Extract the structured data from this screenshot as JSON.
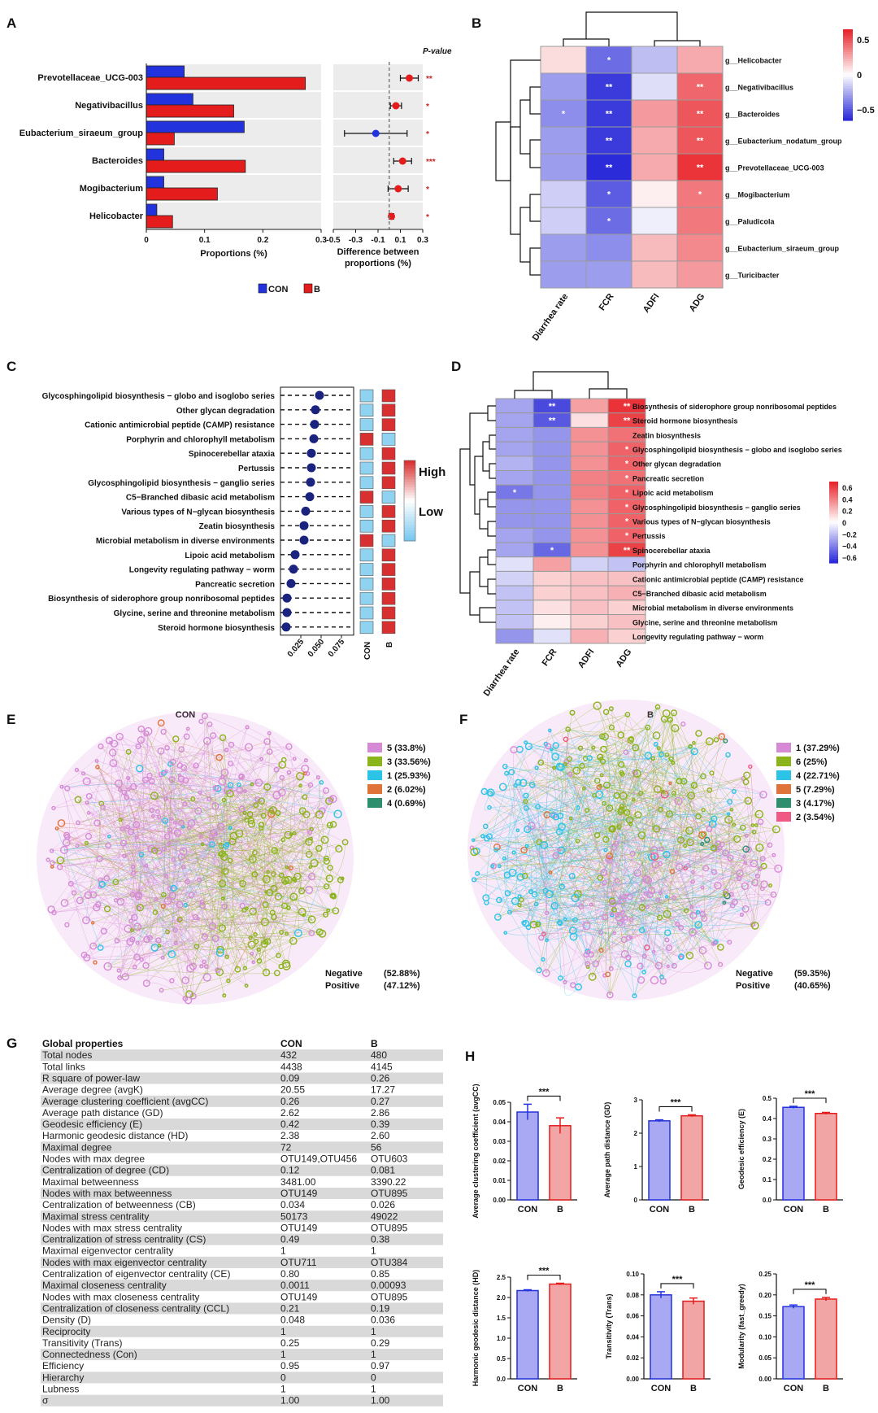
{
  "panels": {
    "A": "A",
    "B": "B",
    "C": "C",
    "D": "D",
    "E": "E",
    "F": "F",
    "G": "G",
    "H": "H"
  },
  "colors": {
    "con": "#2233dd",
    "b": "#e51c1c",
    "sig": "#cc2222",
    "dot_navy": "#1a237e",
    "heat_pos": "#e8232a",
    "heat_neg": "#2b2bd9",
    "net_pink": "#d68ad6",
    "net_green": "#8bb31a",
    "net_cyan": "#2cc4e6",
    "net_orange": "#e0733a",
    "net_teal": "#2d8f6e",
    "net_rose": "#ee5a84",
    "bar_con_fill": "#a8a9f2",
    "bar_b_fill": "#f2a5a5"
  },
  "chart_data": [
    {
      "id": "A",
      "type": "bar",
      "categories": [
        "Prevotellaceae_UCG-003",
        "Negativibacillus",
        "Eubacterium_siraeum_group",
        "Bacteroides",
        "Mogibacterium",
        "Helicobacter"
      ],
      "series": [
        {
          "name": "CON",
          "values": [
            0.065,
            0.08,
            0.168,
            0.03,
            0.03,
            0.018
          ]
        },
        {
          "name": "B",
          "values": [
            0.273,
            0.15,
            0.048,
            0.17,
            0.122,
            0.045
          ]
        }
      ],
      "xlabel": "Proportions (%)",
      "xlim": [
        0,
        0.3
      ],
      "xticks": [
        "0",
        "0.1",
        "0.2",
        "0.3"
      ],
      "legend": [
        {
          "name": "CON",
          "color": "#2233dd"
        },
        {
          "name": "B",
          "color": "#e51c1c"
        }
      ]
    },
    {
      "id": "A2",
      "type": "scatter",
      "title": "P-value",
      "categories": [
        "Prevotellaceae_UCG-003",
        "Negativibacillus",
        "Eubacterium_siraeum_group",
        "Bacteroides",
        "Mogibacterium",
        "Helicobacter"
      ],
      "diff": [
        0.18,
        0.06,
        -0.12,
        0.12,
        0.08,
        0.02
      ],
      "err": [
        0.08,
        0.05,
        0.28,
        0.08,
        0.09,
        0.02
      ],
      "dot_color": [
        "red",
        "red",
        "blue",
        "red",
        "red",
        "red"
      ],
      "pvalue": [
        "**",
        "*",
        "*",
        "***",
        "*",
        "*"
      ],
      "xlabel": "Difference between proportions (%)",
      "xlim": [
        -0.5,
        0.3
      ],
      "xticks": [
        "-0.5",
        "-0.3",
        "-0.1",
        "0.1",
        "0.3"
      ]
    },
    {
      "id": "B",
      "type": "heatmap",
      "rows": [
        "g__Helicobacter",
        "g__Negativibacillus",
        "g__Bacteroides",
        "g__Eubacterium_nodatum_group",
        "g__Prevotellaceae_UCG-003",
        "g__Mogibacterium",
        "g__Paludicola",
        "g__Eubacterium_siraeum_group",
        "g__Turicibacter"
      ],
      "cols": [
        "Diarrhea rate",
        "FCR",
        "ADFI",
        "ADG"
      ],
      "values": [
        [
          0.1,
          -0.45,
          -0.2,
          0.25
        ],
        [
          -0.3,
          -0.6,
          -0.1,
          0.45
        ],
        [
          -0.35,
          -0.6,
          0.3,
          0.5
        ],
        [
          -0.3,
          -0.6,
          0.25,
          0.5
        ],
        [
          -0.3,
          -0.65,
          0.25,
          0.6
        ],
        [
          -0.15,
          -0.5,
          0.05,
          0.4
        ],
        [
          -0.15,
          -0.45,
          -0.05,
          0.4
        ],
        [
          -0.3,
          -0.35,
          0.2,
          0.35
        ],
        [
          -0.3,
          -0.3,
          0.2,
          0.3
        ]
      ],
      "stars": [
        [
          "",
          "*",
          "",
          ""
        ],
        [
          "",
          "**",
          "",
          "**"
        ],
        [
          "*",
          "**",
          "",
          "**"
        ],
        [
          "",
          "**",
          "",
          "**"
        ],
        [
          "",
          "**",
          "",
          "**"
        ],
        [
          "",
          "*",
          "",
          "*"
        ],
        [
          "",
          "*",
          "",
          ""
        ],
        [
          "",
          "",
          "",
          ""
        ],
        [
          "",
          "",
          "",
          ""
        ]
      ],
      "scale_ticks": [
        "0.5",
        "0",
        "−0.5"
      ]
    },
    {
      "id": "C",
      "type": "scatter",
      "categories": [
        "Glycosphingolipid biosynthesis − globo and isoglobo series",
        "Other glycan degradation",
        "Cationic antimicrobial peptide (CAMP) resistance",
        "Porphyrin and chlorophyll metabolism",
        "Spinocerebellar ataxia",
        "Pertussis",
        "Glycosphingolipid biosynthesis − ganglio series",
        "C5−Branched dibasic acid metabolism",
        "Various types of N−glycan biosynthesis",
        "Zeatin biosynthesis",
        "Microbial metabolism in diverse environments",
        "Lipoic acid metabolism",
        "Longevity regulating pathway − worm",
        "Pancreatic secretion",
        "Biosynthesis of siderophore group nonribosomal peptides",
        "Glycine, serine and threonine metabolism",
        "Steroid hormone biosynthesis"
      ],
      "values": [
        0.048,
        0.043,
        0.042,
        0.041,
        0.038,
        0.038,
        0.037,
        0.036,
        0.031,
        0.029,
        0.029,
        0.018,
        0.016,
        0.013,
        0.008,
        0.008,
        0.007
      ],
      "con_level": [
        "low",
        "low",
        "low",
        "high",
        "low",
        "low",
        "low",
        "high",
        "low",
        "low",
        "high",
        "low",
        "low",
        "low",
        "low",
        "low",
        "low"
      ],
      "b_level": [
        "high",
        "high",
        "high",
        "low",
        "high",
        "high",
        "high",
        "low",
        "high",
        "high",
        "low",
        "high",
        "high",
        "high",
        "high",
        "high",
        "high"
      ],
      "xticks": [
        "0.025",
        "0.050",
        "0.075"
      ],
      "group_labels": [
        "CON",
        "B"
      ],
      "legend": [
        "High",
        "Low"
      ]
    },
    {
      "id": "D",
      "type": "heatmap",
      "rows": [
        "Biosynthesis of siderophore group nonribosomal peptides",
        "Steroid hormone biosynthesis",
        "Zeatin biosynthesis",
        "Glycosphingolipid biosynthesis − globo and isoglobo series",
        "Other glycan degradation",
        "Pancreatic secretion",
        "Lipoic acid metabolism",
        "Glycosphingolipid biosynthesis − ganglio series",
        "Various types of N−glycan biosynthesis",
        "Pertussis",
        "Spinocerebellar ataxia",
        "Porphyrin and chlorophyll metabolism",
        "Cationic antimicrobial peptide (CAMP) resistance",
        "C5−Branched dibasic acid metabolism",
        "Microbial metabolism in diverse environments",
        "Glycine, serine and threonine metabolism",
        "Longevity regulating pathway − worm"
      ],
      "cols": [
        "Diarrhea rate",
        "FCR",
        "ADFI",
        "ADG"
      ],
      "values": [
        [
          -0.3,
          -0.6,
          0.3,
          0.65
        ],
        [
          -0.3,
          -0.55,
          0.1,
          0.6
        ],
        [
          -0.3,
          -0.35,
          0.35,
          0.45
        ],
        [
          -0.3,
          -0.35,
          0.35,
          0.5
        ],
        [
          -0.25,
          -0.35,
          0.35,
          0.5
        ],
        [
          -0.3,
          -0.35,
          0.4,
          0.45
        ],
        [
          -0.45,
          -0.35,
          0.4,
          0.5
        ],
        [
          -0.35,
          -0.35,
          0.35,
          0.5
        ],
        [
          -0.35,
          -0.35,
          0.35,
          0.5
        ],
        [
          -0.3,
          -0.35,
          0.35,
          0.5
        ],
        [
          -0.3,
          -0.5,
          0.35,
          0.6
        ],
        [
          -0.1,
          0.3,
          -0.15,
          -0.2
        ],
        [
          -0.15,
          0.15,
          0.2,
          0.2
        ],
        [
          -0.2,
          0.15,
          0.2,
          0.25
        ],
        [
          -0.2,
          0.1,
          0.2,
          0.15
        ],
        [
          -0.2,
          0.05,
          0.15,
          0.2
        ],
        [
          -0.35,
          -0.1,
          0.25,
          0.15
        ]
      ],
      "stars": [
        [
          "",
          "**",
          "",
          "**"
        ],
        [
          "",
          "**",
          "",
          "**"
        ],
        [
          "",
          "",
          "",
          ""
        ],
        [
          "",
          "",
          "",
          "*"
        ],
        [
          "",
          "",
          "",
          "*"
        ],
        [
          "",
          "",
          "",
          "*"
        ],
        [
          "*",
          "",
          "",
          "*"
        ],
        [
          "",
          "",
          "",
          "*"
        ],
        [
          "",
          "",
          "",
          "*"
        ],
        [
          "",
          "",
          "",
          "*"
        ],
        [
          "",
          "*",
          "",
          "**"
        ],
        [
          "",
          "",
          "",
          ""
        ],
        [
          "",
          "",
          "",
          ""
        ],
        [
          "",
          "",
          "",
          ""
        ],
        [
          "",
          "",
          "",
          ""
        ],
        [
          "",
          "",
          "",
          ""
        ],
        [
          "",
          "",
          "",
          ""
        ]
      ],
      "scale_ticks": [
        "0.6",
        "0.4",
        "0.2",
        "0",
        "−0.2",
        "−0.4",
        "−0.6"
      ]
    },
    {
      "id": "H1",
      "type": "bar",
      "categories": [
        "CON",
        "B"
      ],
      "values": [
        0.045,
        0.038
      ],
      "err": [
        0.004,
        0.004
      ],
      "ylabel": "Average clustering coefficient (avgCC)",
      "ylim": [
        0,
        0.05
      ],
      "yticks": [
        "0.00",
        "0.01",
        "0.02",
        "0.03",
        "0.04",
        "0.05"
      ],
      "sig": "***"
    },
    {
      "id": "H2",
      "type": "bar",
      "categories": [
        "CON",
        "B"
      ],
      "values": [
        2.37,
        2.52
      ],
      "err": [
        0.03,
        0.03
      ],
      "ylabel": "Average path distance (GD)",
      "ylim": [
        0,
        3
      ],
      "yticks": [
        "0",
        "1",
        "2",
        "3"
      ],
      "sig": "***"
    },
    {
      "id": "H3",
      "type": "bar",
      "categories": [
        "CON",
        "B"
      ],
      "values": [
        0.455,
        0.425
      ],
      "err": [
        0.005,
        0.005
      ],
      "ylabel": "Geodesic efficiency (E)",
      "ylim": [
        0,
        0.5
      ],
      "yticks": [
        "0.0",
        "0.1",
        "0.2",
        "0.3",
        "0.4",
        "0.5"
      ],
      "sig": "***"
    },
    {
      "id": "H4",
      "type": "bar",
      "categories": [
        "CON",
        "B"
      ],
      "values": [
        2.17,
        2.33
      ],
      "err": [
        0.02,
        0.02
      ],
      "ylabel": "Harmonic geodesic distance (HD)",
      "ylim": [
        0,
        2.5
      ],
      "yticks": [
        "0.0",
        "0.5",
        "1.0",
        "1.5",
        "2.0",
        "2.5"
      ],
      "sig": "***"
    },
    {
      "id": "H5",
      "type": "bar",
      "categories": [
        "CON",
        "B"
      ],
      "values": [
        0.08,
        0.074
      ],
      "err": [
        0.003,
        0.003
      ],
      "ylabel": "Transitivity (Trans)",
      "ylim": [
        0,
        0.1
      ],
      "yticks": [
        "0.00",
        "0.02",
        "0.04",
        "0.06",
        "0.08",
        "0.10"
      ],
      "sig": "***"
    },
    {
      "id": "H6",
      "type": "bar",
      "categories": [
        "CON",
        "B"
      ],
      "values": [
        0.172,
        0.19
      ],
      "err": [
        0.004,
        0.004
      ],
      "ylabel": "Modularity (fast_greedy)",
      "ylim": [
        0,
        0.25
      ],
      "yticks": [
        "0.00",
        "0.05",
        "0.10",
        "0.15",
        "0.20",
        "0.25"
      ],
      "sig": "***"
    }
  ],
  "networks": {
    "E": {
      "title": "CON",
      "modules": [
        {
          "label": "5 (33.8%)",
          "color": "#d68ad6"
        },
        {
          "label": "3 (33.56%)",
          "color": "#8bb31a"
        },
        {
          "label": "1 (25.93%)",
          "color": "#2cc4e6"
        },
        {
          "label": "2 (6.02%)",
          "color": "#e0733a"
        },
        {
          "label": "4 (0.69%)",
          "color": "#2d8f6e"
        }
      ],
      "negative_label": "Negative",
      "positive_label": "Positive",
      "negative_value": "(52.88%)",
      "positive_value": "(47.12%)"
    },
    "F": {
      "title": "B",
      "modules": [
        {
          "label": "1 (37.29%)",
          "color": "#d68ad6"
        },
        {
          "label": "6 (25%)",
          "color": "#8bb31a"
        },
        {
          "label": "4 (22.71%)",
          "color": "#2cc4e6"
        },
        {
          "label": "5 (7.29%)",
          "color": "#e0733a"
        },
        {
          "label": "3 (4.17%)",
          "color": "#2d8f6e"
        },
        {
          "label": "2 (3.54%)",
          "color": "#ee5a84"
        }
      ],
      "negative_label": "Negative",
      "positive_label": "Positive",
      "negative_value": "(59.35%)",
      "positive_value": "(40.65%)"
    }
  },
  "table": {
    "headers": [
      "Global properties",
      "CON",
      "B"
    ],
    "rows": [
      [
        "Total nodes",
        "432",
        "480"
      ],
      [
        "Total links",
        "4438",
        "4145"
      ],
      [
        "R square of power-law",
        "0.09",
        "0.26"
      ],
      [
        "Average degree (avgK)",
        "20.55",
        "17.27"
      ],
      [
        "Average clustering coefficient (avgCC)",
        "0.26",
        "0.27"
      ],
      [
        "Average path distance (GD)",
        "2.62",
        "2.86"
      ],
      [
        "Geodesic efficiency (E)",
        "0.42",
        "0.39"
      ],
      [
        "Harmonic geodesic distance (HD)",
        "2.38",
        "2.60"
      ],
      [
        "Maximal degree",
        "72",
        "56"
      ],
      [
        "Nodes with max degree",
        "OTU149,OTU456",
        "OTU603"
      ],
      [
        "Centralization of degree (CD)",
        "0.12",
        "0.081"
      ],
      [
        "Maximal betweenness",
        "3481.00",
        "3390.22"
      ],
      [
        "Nodes with max betweenness",
        "OTU149",
        "OTU895"
      ],
      [
        "Centralization of betweenness (CB)",
        "0.034",
        "0.026"
      ],
      [
        "Maximal stress centrality",
        "50173",
        "49022"
      ],
      [
        "Nodes with max stress centrality",
        "OTU149",
        "OTU895"
      ],
      [
        "Centralization of stress centrality (CS)",
        "0.49",
        "0.38"
      ],
      [
        "Maximal eigenvector centrality",
        "1",
        "1"
      ],
      [
        "Nodes with max eigenvector centrality",
        "OTU711",
        "OTU384"
      ],
      [
        "Centralization of eigenvector centrality (CE)",
        "0.80",
        "0.85"
      ],
      [
        "Maximal closeness centrality",
        "0.0011",
        "0.00093"
      ],
      [
        "Nodes with max closeness centrality",
        "OTU149",
        "OTU895"
      ],
      [
        "Centralization of closeness centrality (CCL)",
        "0.21",
        "0.19"
      ],
      [
        "Density (D)",
        "0.048",
        "0.036"
      ],
      [
        "Reciprocity",
        "1",
        "1"
      ],
      [
        "Transitivity (Trans)",
        "0.25",
        "0.29"
      ],
      [
        "Connectedness (Con)",
        "1",
        "1"
      ],
      [
        "Efficiency",
        "0.95",
        "0.97"
      ],
      [
        "Hierarchy",
        "0",
        "0"
      ],
      [
        "Lubness",
        "1",
        "1"
      ],
      [
        "σ",
        "1.00",
        "1.00"
      ]
    ]
  }
}
